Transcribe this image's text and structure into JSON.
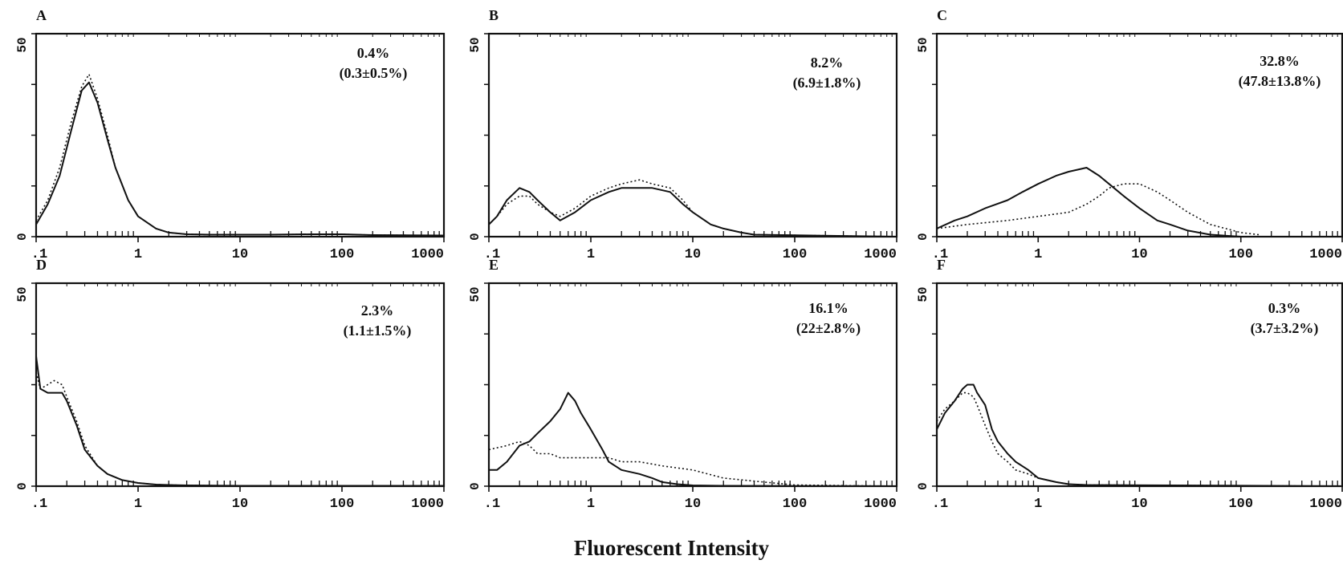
{
  "figure": {
    "xlabel": "Fluorescent Intensity"
  },
  "chart_data": [
    {
      "type": "line",
      "panel": "A",
      "annotation": {
        "value": "0.4%",
        "range": "(0.3±0.5%)"
      },
      "xscale": "log",
      "xlim": [
        0.1,
        1000
      ],
      "ylim": [
        0,
        50
      ],
      "xticks": [
        ".1",
        "1",
        "10",
        "100",
        "1000"
      ],
      "yticks": [
        "0",
        "50"
      ],
      "series": [
        {
          "style": "solid",
          "x": [
            0.1,
            0.13,
            0.17,
            0.22,
            0.28,
            0.33,
            0.4,
            0.5,
            0.6,
            0.8,
            1.0,
            1.5,
            2,
            3,
            5,
            10,
            20,
            50,
            100,
            200,
            1000
          ],
          "y": [
            3,
            8,
            15,
            26,
            36,
            38,
            33,
            24,
            17,
            9,
            5,
            2,
            1,
            0.6,
            0.5,
            0.5,
            0.5,
            0.6,
            0.6,
            0.4,
            0.3
          ]
        },
        {
          "style": "dotted",
          "x": [
            0.1,
            0.13,
            0.17,
            0.22,
            0.28,
            0.33,
            0.4,
            0.5,
            0.6,
            0.8,
            1.0,
            1.5,
            2,
            3,
            5,
            10,
            20,
            50,
            100,
            200,
            1000
          ],
          "y": [
            4,
            9,
            17,
            28,
            37,
            40,
            34,
            25,
            17,
            9,
            5,
            2,
            1,
            0.6,
            0.5,
            0.5,
            0.5,
            0.6,
            0.6,
            0.4,
            0.3
          ]
        }
      ]
    },
    {
      "type": "line",
      "panel": "B",
      "annotation": {
        "value": "8.2%",
        "range": "(6.9±1.8%)"
      },
      "xscale": "log",
      "xlim": [
        0.1,
        1000
      ],
      "ylim": [
        0,
        50
      ],
      "xticks": [
        ".1",
        "1",
        "10",
        "100",
        "1000"
      ],
      "yticks": [
        "0",
        "50"
      ],
      "series": [
        {
          "style": "solid",
          "x": [
            0.1,
            0.12,
            0.15,
            0.2,
            0.25,
            0.3,
            0.4,
            0.5,
            0.7,
            1.0,
            1.5,
            2,
            3,
            4,
            6,
            8,
            10,
            15,
            20,
            30,
            40,
            1000
          ],
          "y": [
            3,
            5,
            9,
            12,
            11,
            9,
            6,
            4,
            6,
            9,
            11,
            12,
            12,
            12,
            11,
            8,
            6,
            3,
            2,
            1,
            0.5,
            0
          ]
        },
        {
          "style": "dotted",
          "x": [
            0.1,
            0.12,
            0.15,
            0.2,
            0.25,
            0.3,
            0.4,
            0.5,
            0.7,
            1.0,
            1.5,
            2,
            3,
            4,
            6,
            8,
            10,
            15,
            20,
            30,
            40,
            1000
          ],
          "y": [
            3,
            5,
            8,
            10,
            10,
            8,
            6,
            5,
            7,
            10,
            12,
            13,
            14,
            13,
            12,
            9,
            6,
            3,
            2,
            1,
            0.5,
            0
          ]
        }
      ]
    },
    {
      "type": "line",
      "panel": "C",
      "annotation": {
        "value": "32.8%",
        "range": "(47.8±13.8%)"
      },
      "xscale": "log",
      "xlim": [
        0.1,
        1000
      ],
      "ylim": [
        0,
        50
      ],
      "xticks": [
        ".1",
        "1",
        "10",
        "100",
        "1000"
      ],
      "yticks": [
        "0",
        "50"
      ],
      "series": [
        {
          "style": "solid",
          "x": [
            0.1,
            0.15,
            0.2,
            0.3,
            0.5,
            0.7,
            1.0,
            1.5,
            2,
            3,
            4,
            5,
            7,
            10,
            15,
            20,
            30,
            50,
            100
          ],
          "y": [
            2,
            4,
            5,
            7,
            9,
            11,
            13,
            15,
            16,
            17,
            15,
            13,
            10,
            7,
            4,
            3,
            1.5,
            0.5,
            0
          ]
        },
        {
          "style": "dotted",
          "x": [
            0.1,
            0.2,
            0.5,
            1.0,
            2,
            3,
            4,
            5,
            7,
            10,
            15,
            20,
            30,
            50,
            100,
            150
          ],
          "y": [
            2,
            3,
            4,
            5,
            6,
            8,
            10,
            12,
            13,
            13,
            11,
            9,
            6,
            3,
            1,
            0.5
          ]
        }
      ]
    },
    {
      "type": "line",
      "panel": "D",
      "annotation": {
        "value": "2.3%",
        "range": "(1.1±1.5%)"
      },
      "xscale": "log",
      "xlim": [
        0.1,
        1000
      ],
      "ylim": [
        0,
        50
      ],
      "xticks": [
        ".1",
        "1",
        "10",
        "100",
        "1000"
      ],
      "yticks": [
        "0",
        "50"
      ],
      "series": [
        {
          "style": "solid",
          "x": [
            0.1,
            0.11,
            0.13,
            0.15,
            0.18,
            0.2,
            0.25,
            0.3,
            0.4,
            0.5,
            0.7,
            1.0,
            1.5,
            2,
            3,
            10,
            100,
            1000
          ],
          "y": [
            32,
            24,
            23,
            23,
            23,
            21,
            15,
            9,
            5,
            3,
            1.5,
            0.8,
            0.4,
            0.3,
            0.2,
            0.1,
            0.1,
            0.1
          ]
        },
        {
          "style": "dotted",
          "x": [
            0.1,
            0.11,
            0.13,
            0.15,
            0.18,
            0.2,
            0.25,
            0.3,
            0.4,
            0.5,
            0.7,
            1.0,
            1.5,
            2,
            3,
            10,
            100,
            1000
          ],
          "y": [
            28,
            24,
            25,
            26,
            25,
            22,
            16,
            10,
            5,
            3,
            1.5,
            0.8,
            0.4,
            0.3,
            0.2,
            0.1,
            0.1,
            0.1
          ]
        }
      ]
    },
    {
      "type": "line",
      "panel": "E",
      "annotation": {
        "value": "16.1%",
        "range": "(22±2.8%)"
      },
      "xscale": "log",
      "xlim": [
        0.1,
        1000
      ],
      "ylim": [
        0,
        50
      ],
      "xticks": [
        ".1",
        "1",
        "10",
        "100",
        "1000"
      ],
      "yticks": [
        "0",
        "50"
      ],
      "series": [
        {
          "style": "solid",
          "x": [
            0.1,
            0.12,
            0.15,
            0.2,
            0.25,
            0.3,
            0.4,
            0.5,
            0.6,
            0.7,
            0.8,
            1.0,
            1.3,
            1.5,
            2,
            3,
            4,
            5,
            7,
            10,
            20,
            1000
          ],
          "y": [
            4,
            4,
            6,
            10,
            11,
            13,
            16,
            19,
            23,
            21,
            18,
            14,
            9,
            6,
            4,
            3,
            2,
            1,
            0.5,
            0.2,
            0.1,
            0
          ]
        },
        {
          "style": "dotted",
          "x": [
            0.1,
            0.15,
            0.2,
            0.25,
            0.3,
            0.4,
            0.5,
            0.7,
            1.0,
            1.5,
            2,
            3,
            5,
            10,
            20,
            50,
            100,
            1000
          ],
          "y": [
            9,
            10,
            11,
            10,
            8,
            8,
            7,
            7,
            7,
            7,
            6,
            6,
            5,
            4,
            2,
            1,
            0.3,
            0
          ]
        }
      ]
    },
    {
      "type": "line",
      "panel": "F",
      "annotation": {
        "value": "0.3%",
        "range": "(3.7±3.2%)"
      },
      "xscale": "log",
      "xlim": [
        0.1,
        1000
      ],
      "ylim": [
        0,
        50
      ],
      "xticks": [
        ".1",
        "1",
        "10",
        "100",
        "1000"
      ],
      "yticks": [
        "0",
        "50"
      ],
      "series": [
        {
          "style": "solid",
          "x": [
            0.1,
            0.12,
            0.15,
            0.18,
            0.2,
            0.23,
            0.25,
            0.3,
            0.35,
            0.4,
            0.5,
            0.6,
            0.8,
            1.0,
            1.5,
            2,
            3,
            1000
          ],
          "y": [
            14,
            18,
            21,
            24,
            25,
            25,
            23,
            20,
            14,
            11,
            8,
            6,
            4,
            2,
            1,
            0.5,
            0.3,
            0
          ]
        },
        {
          "style": "dotted",
          "x": [
            0.1,
            0.12,
            0.15,
            0.18,
            0.2,
            0.23,
            0.25,
            0.3,
            0.35,
            0.4,
            0.5,
            0.6,
            0.8,
            1.0,
            1.5,
            2,
            3,
            1000
          ],
          "y": [
            16,
            19,
            21,
            23,
            23,
            22,
            20,
            15,
            11,
            8,
            6,
            4,
            3,
            2,
            1,
            0.5,
            0.3,
            0
          ]
        }
      ]
    }
  ]
}
